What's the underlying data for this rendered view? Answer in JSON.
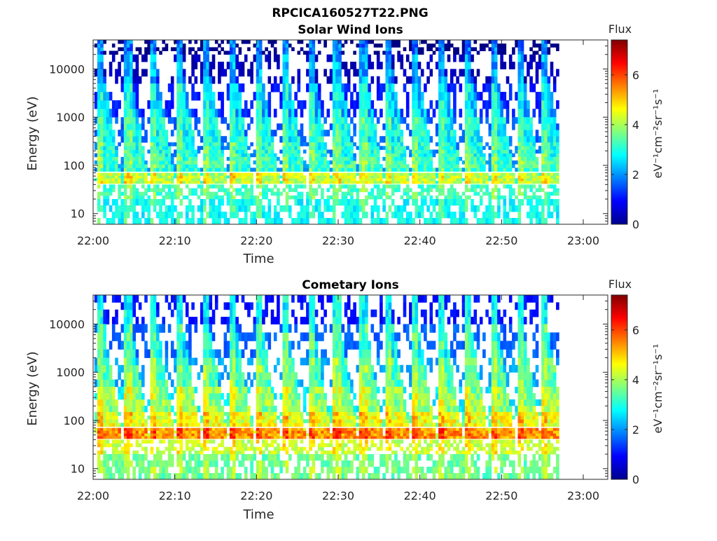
{
  "figure_title": "RPCICA160527T22.PNG",
  "chart_data": [
    {
      "type": "heatmap",
      "title": "Solar Wind Ions",
      "xlabel": "Time",
      "ylabel": "Energy (eV)",
      "x_ticks": [
        "22:00",
        "22:10",
        "22:20",
        "22:30",
        "22:40",
        "22:50",
        "23:00"
      ],
      "xlim": [
        "22:00",
        "23:03"
      ],
      "data_end": "22:57",
      "ylim": [
        6,
        40000
      ],
      "yscale": "log",
      "y_ticks": [
        10,
        100,
        1000,
        10000
      ],
      "y_tick_labels": [
        "10",
        "100",
        "1000",
        "10000"
      ],
      "colorbar": {
        "title": "Flux",
        "label": "eV⁻¹cm⁻²sr⁻¹s⁻¹",
        "min": 0,
        "max": 7.4,
        "ticks": [
          0,
          2,
          4,
          6
        ],
        "colormap": "jet"
      },
      "sweep_start_times_min": [
        0.5,
        3.8,
        7.0,
        10.2,
        13.4,
        16.6,
        19.8,
        23.0,
        26.2,
        29.4,
        32.6,
        35.8,
        39.0,
        42.2,
        45.4,
        48.6,
        51.8,
        54.8
      ],
      "energy_bands": [
        {
          "from_eV": 20000,
          "to_eV": 40000,
          "flux": 1.2
        },
        {
          "from_eV": 5000,
          "to_eV": 20000,
          "flux": 1.6
        },
        {
          "from_eV": 1000,
          "to_eV": 5000,
          "flux": 2.3
        },
        {
          "from_eV": 300,
          "to_eV": 1000,
          "flux": 2.8
        },
        {
          "from_eV": 150,
          "to_eV": 300,
          "flux": 3.0
        },
        {
          "from_eV": 75,
          "to_eV": 150,
          "flux": 3.2
        },
        {
          "from_eV": 42,
          "to_eV": 70,
          "flux": 4.2
        },
        {
          "from_eV": 20,
          "to_eV": 40,
          "flux": 3.0
        },
        {
          "from_eV": 6,
          "to_eV": 20,
          "flux": 2.6
        }
      ]
    },
    {
      "type": "heatmap",
      "title": "Cometary Ions",
      "xlabel": "Time",
      "ylabel": "Energy (eV)",
      "x_ticks": [
        "22:00",
        "22:10",
        "22:20",
        "22:30",
        "22:40",
        "22:50",
        "23:00"
      ],
      "xlim": [
        "22:00",
        "23:03"
      ],
      "data_end": "22:57",
      "ylim": [
        6,
        40000
      ],
      "yscale": "log",
      "y_ticks": [
        10,
        100,
        1000,
        10000
      ],
      "y_tick_labels": [
        "10",
        "100",
        "1000",
        "10000"
      ],
      "colorbar": {
        "title": "Flux",
        "label": "eV⁻¹cm⁻²sr⁻¹s⁻¹",
        "min": 0,
        "max": 7.4,
        "ticks": [
          0,
          2,
          4,
          6
        ],
        "colormap": "jet"
      },
      "sweep_start_times_min": [
        0.5,
        3.8,
        7.0,
        10.2,
        13.4,
        16.6,
        19.8,
        23.0,
        26.2,
        29.4,
        32.6,
        35.8,
        39.0,
        42.2,
        45.4,
        48.6,
        51.8,
        54.8
      ],
      "energy_bands": [
        {
          "from_eV": 10000,
          "to_eV": 40000,
          "flux": 2.2
        },
        {
          "from_eV": 2000,
          "to_eV": 10000,
          "flux": 2.8
        },
        {
          "from_eV": 500,
          "to_eV": 2000,
          "flux": 3.3
        },
        {
          "from_eV": 150,
          "to_eV": 500,
          "flux": 3.8
        },
        {
          "from_eV": 75,
          "to_eV": 150,
          "flux": 4.5
        },
        {
          "from_eV": 42,
          "to_eV": 70,
          "flux": 5.4
        },
        {
          "from_eV": 20,
          "to_eV": 40,
          "flux": 4.0
        },
        {
          "from_eV": 6,
          "to_eV": 20,
          "flux": 3.3
        }
      ]
    }
  ]
}
